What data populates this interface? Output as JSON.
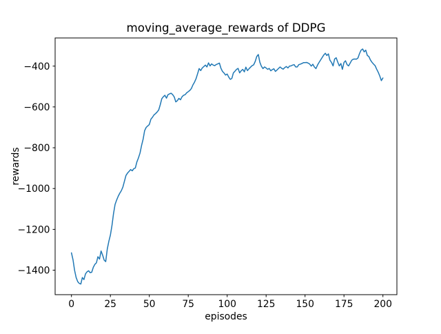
{
  "figure": {
    "background_color": "#ffffff",
    "text_color": "#000000"
  },
  "chart_data": {
    "type": "line",
    "title": "moving_average_rewards of DDPG",
    "xlabel": "episodes",
    "ylabel": "rewards",
    "legend": "none",
    "grid": false,
    "line_color": "#1f77b4",
    "line_width": 1.5,
    "spine_color": "#000000",
    "xlim": [
      -10.5,
      209
    ],
    "ylim": [
      -1520,
      -262
    ],
    "xticks": [
      0,
      25,
      50,
      75,
      100,
      125,
      150,
      175,
      200
    ],
    "xtick_labels": [
      "0",
      "25",
      "50",
      "75",
      "100",
      "125",
      "150",
      "175",
      "200"
    ],
    "yticks": [
      -400,
      -600,
      -800,
      -1000,
      -1200,
      -1400
    ],
    "ytick_labels": [
      "−400",
      "−600",
      "−800",
      "−1000",
      "−1200",
      "−1400"
    ],
    "x_description": "episode index 0..200, step 1",
    "values": [
      -1315,
      -1350,
      -1400,
      -1436,
      -1456,
      -1465,
      -1468,
      -1436,
      -1446,
      -1418,
      -1408,
      -1403,
      -1412,
      -1410,
      -1386,
      -1372,
      -1364,
      -1334,
      -1346,
      -1306,
      -1326,
      -1351,
      -1358,
      -1296,
      -1258,
      -1228,
      -1181,
      -1124,
      -1078,
      -1056,
      -1038,
      -1023,
      -1011,
      -993,
      -964,
      -936,
      -924,
      -916,
      -907,
      -913,
      -903,
      -899,
      -870,
      -850,
      -826,
      -790,
      -758,
      -716,
      -700,
      -693,
      -686,
      -660,
      -651,
      -639,
      -633,
      -625,
      -615,
      -590,
      -560,
      -550,
      -543,
      -557,
      -540,
      -536,
      -533,
      -540,
      -551,
      -575,
      -569,
      -558,
      -565,
      -550,
      -543,
      -540,
      -531,
      -525,
      -519,
      -510,
      -492,
      -479,
      -462,
      -437,
      -412,
      -422,
      -409,
      -402,
      -395,
      -404,
      -384,
      -399,
      -389,
      -395,
      -398,
      -392,
      -389,
      -385,
      -411,
      -426,
      -434,
      -444,
      -439,
      -454,
      -465,
      -460,
      -433,
      -425,
      -416,
      -411,
      -433,
      -423,
      -416,
      -428,
      -405,
      -422,
      -413,
      -405,
      -398,
      -394,
      -377,
      -353,
      -343,
      -381,
      -401,
      -412,
      -404,
      -409,
      -416,
      -411,
      -423,
      -417,
      -413,
      -426,
      -419,
      -411,
      -404,
      -411,
      -415,
      -407,
      -402,
      -409,
      -400,
      -399,
      -395,
      -393,
      -404,
      -404,
      -393,
      -390,
      -387,
      -383,
      -383,
      -382,
      -385,
      -390,
      -400,
      -391,
      -404,
      -412,
      -395,
      -382,
      -370,
      -358,
      -346,
      -337,
      -348,
      -340,
      -371,
      -382,
      -399,
      -365,
      -359,
      -380,
      -399,
      -387,
      -416,
      -382,
      -374,
      -393,
      -399,
      -385,
      -371,
      -366,
      -365,
      -366,
      -360,
      -338,
      -322,
      -316,
      -330,
      -322,
      -348,
      -353,
      -370,
      -381,
      -390,
      -398,
      -415,
      -430,
      -448,
      -471,
      -458
    ]
  }
}
